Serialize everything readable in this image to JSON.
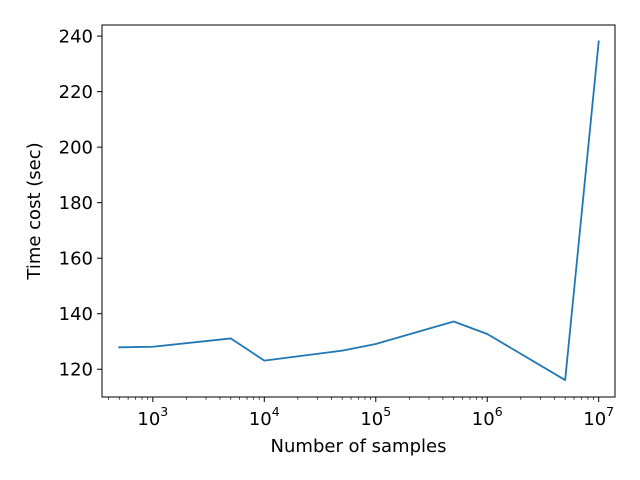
{
  "chart_data": {
    "type": "line",
    "title": "",
    "xlabel": "Number of samples",
    "ylabel": "Time cost (sec)",
    "xscale": "log",
    "xlim": [
      350,
      14000000
    ],
    "ylim": [
      110,
      244
    ],
    "grid": false,
    "series": [
      {
        "color": "#1f77b4",
        "x": [
          500,
          1000,
          5000,
          10000,
          50000,
          100000,
          500000,
          1000000,
          5000000,
          10000000
        ],
        "y": [
          127.9,
          128.1,
          131.1,
          123.1,
          126.7,
          129.1,
          137.2,
          132.7,
          116.1,
          238.1
        ]
      }
    ],
    "y_ticks": [
      120,
      140,
      160,
      180,
      200,
      220,
      240
    ],
    "x_ticks": [
      {
        "value": 1000,
        "base": "10",
        "exp": "3"
      },
      {
        "value": 10000,
        "base": "10",
        "exp": "4"
      },
      {
        "value": 100000,
        "base": "10",
        "exp": "5"
      },
      {
        "value": 1000000,
        "base": "10",
        "exp": "6"
      },
      {
        "value": 10000000,
        "base": "10",
        "exp": "7"
      }
    ]
  }
}
